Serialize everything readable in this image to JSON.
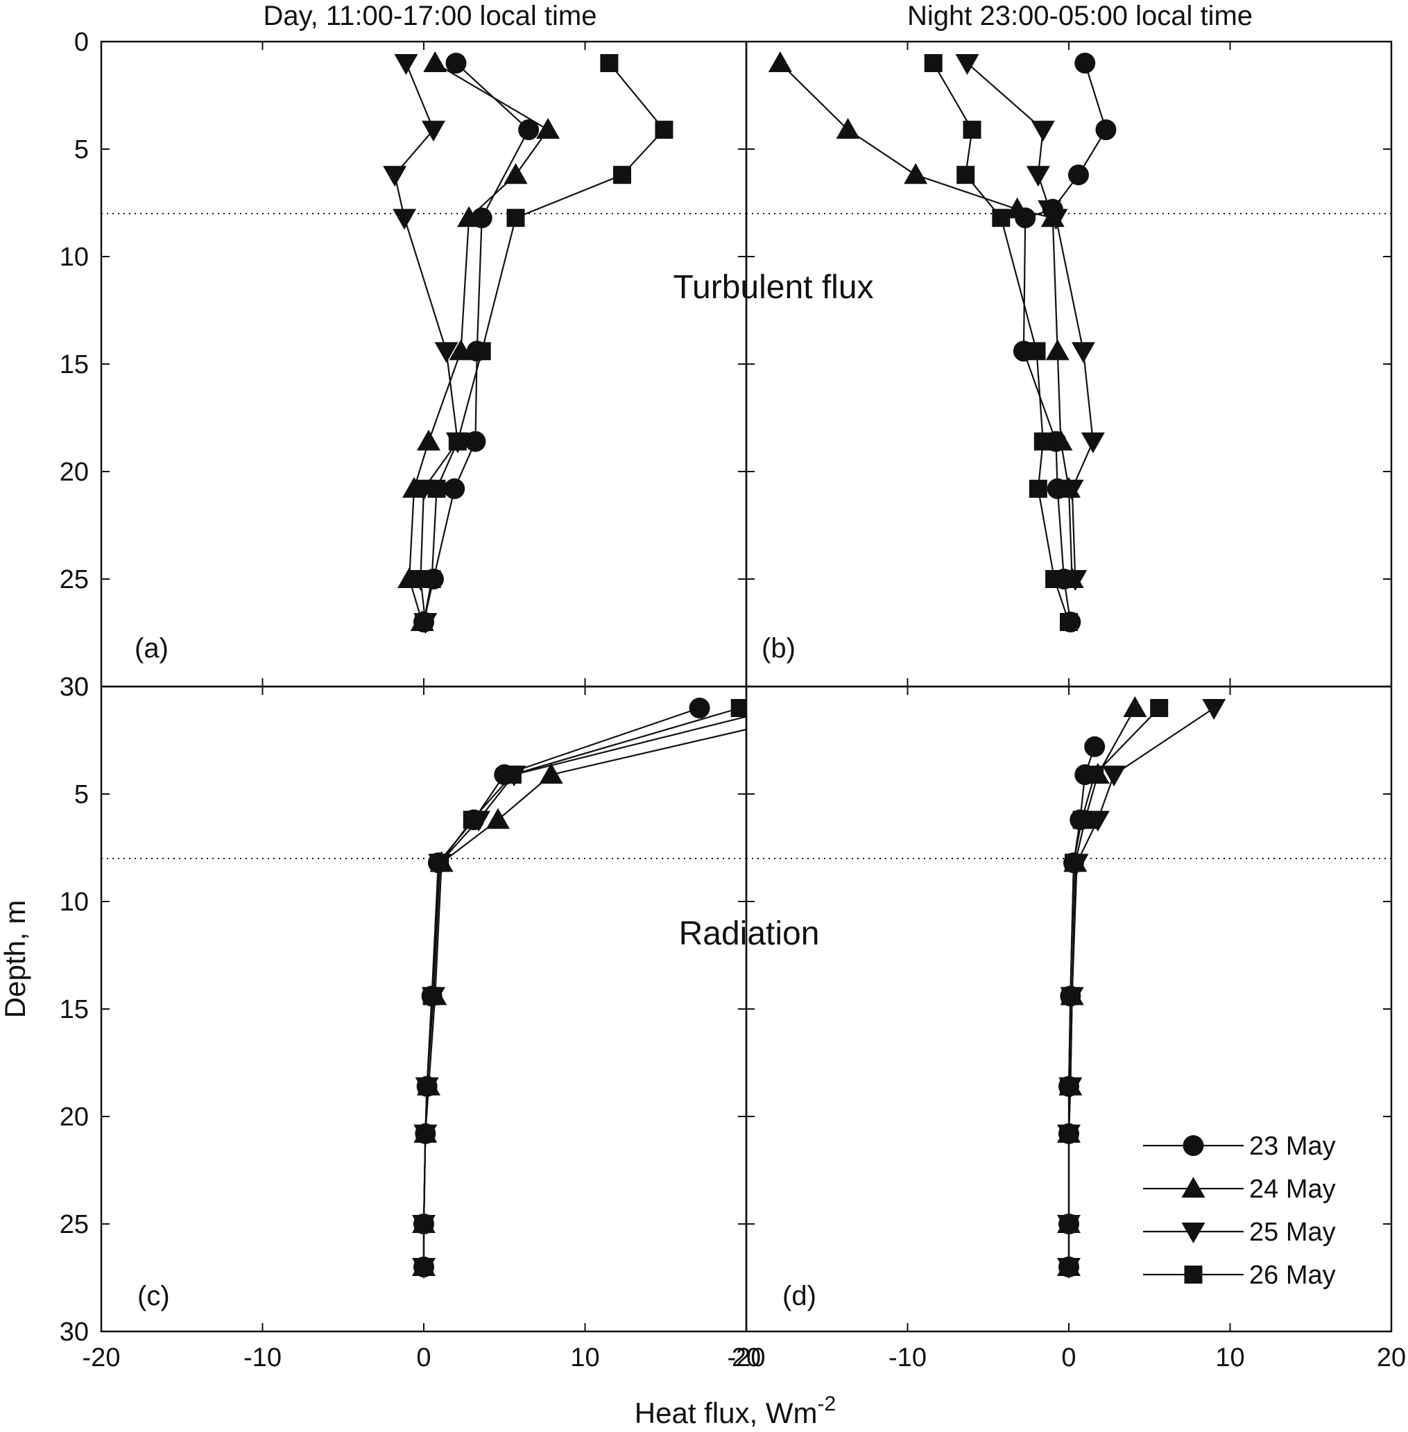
{
  "figure": {
    "column_titles": [
      "Day, 11:00-17:00 local time",
      "Night 23:00-05:00 local time"
    ],
    "xlabel": "Heat flux, Wm",
    "xlabel_sup": "-2",
    "ylabel": "Depth, m",
    "colors": {
      "ink": "#111111",
      "background": "#ffffff"
    },
    "legend_position": "bottom-right of panel (d)"
  },
  "chart_data": [
    {
      "type": "line",
      "panel": "(a)",
      "title": "Turbulent flux",
      "orientation": "depth-profile",
      "xlim": [
        -20,
        20
      ],
      "ylim": [
        30,
        0
      ],
      "y_inverted": true,
      "xticks": [
        -20,
        -10,
        0,
        10,
        20
      ],
      "yticks": [
        0,
        5,
        10,
        15,
        20,
        25,
        30
      ],
      "reference_depth": 8,
      "series": [
        {
          "name": "23 May",
          "marker": "circle",
          "x": [
            2.0,
            6.5,
            3.6,
            3.3,
            3.2,
            1.9,
            0.6,
            0.0
          ],
          "depth": [
            1.0,
            4.1,
            8.2,
            14.4,
            18.6,
            20.8,
            25.0,
            27.0
          ]
        },
        {
          "name": "24 May",
          "marker": "triangle-up",
          "x": [
            0.7,
            7.7,
            5.7,
            2.8,
            2.3,
            0.3,
            -0.6,
            -0.9,
            -0.1
          ],
          "depth": [
            1.0,
            4.1,
            6.2,
            8.2,
            14.4,
            18.6,
            20.8,
            25.0,
            27.0
          ]
        },
        {
          "name": "25 May",
          "marker": "triangle-down",
          "x": [
            -1.1,
            0.6,
            -1.8,
            -1.2,
            1.4,
            2.1,
            0.0,
            -0.2,
            0.1
          ],
          "depth": [
            1.0,
            4.1,
            6.2,
            8.2,
            14.4,
            18.6,
            20.8,
            25.0,
            27.0
          ]
        },
        {
          "name": "26 May",
          "marker": "square",
          "x": [
            11.5,
            14.9,
            12.3,
            5.7,
            3.6,
            2.1,
            0.8,
            0.5,
            0.0
          ],
          "depth": [
            1.0,
            4.1,
            6.2,
            8.2,
            14.4,
            18.6,
            20.8,
            25.0,
            27.0
          ]
        }
      ]
    },
    {
      "type": "line",
      "panel": "(b)",
      "title": "",
      "orientation": "depth-profile",
      "xlim": [
        -20,
        20
      ],
      "ylim": [
        30,
        0
      ],
      "y_inverted": true,
      "xticks": [
        -20,
        -10,
        0,
        10,
        20
      ],
      "yticks": [
        0,
        5,
        10,
        15,
        20,
        25,
        30
      ],
      "reference_depth": 8,
      "series": [
        {
          "name": "23 May",
          "marker": "circle",
          "x": [
            1.0,
            2.3,
            0.6,
            -1.0,
            -2.7,
            -2.8,
            -0.8,
            -0.7,
            -0.3,
            0.1
          ],
          "depth": [
            1.0,
            4.1,
            6.2,
            7.8,
            8.2,
            14.4,
            18.6,
            20.8,
            25.0,
            27.0
          ]
        },
        {
          "name": "24 May",
          "marker": "triangle-up",
          "x": [
            -17.9,
            -13.7,
            -9.5,
            -3.2,
            -1.0,
            -0.7,
            -0.5,
            0.0,
            0.2
          ],
          "depth": [
            1.0,
            4.1,
            6.2,
            7.8,
            8.2,
            14.4,
            18.6,
            20.8,
            25.0
          ]
        },
        {
          "name": "25 May",
          "marker": "triangle-down",
          "x": [
            -6.3,
            -1.6,
            -1.9,
            -1.2,
            -0.8,
            0.9,
            1.5,
            0.2,
            0.4
          ],
          "depth": [
            1.0,
            4.1,
            6.2,
            7.8,
            8.2,
            14.4,
            18.6,
            20.8,
            25.0
          ]
        },
        {
          "name": "26 May",
          "marker": "square",
          "x": [
            -8.4,
            -6.0,
            -6.4,
            -4.2,
            -2.0,
            -1.6,
            -1.9,
            -0.9,
            0.0
          ],
          "depth": [
            1.0,
            4.1,
            6.2,
            8.2,
            14.4,
            18.6,
            20.8,
            25.0,
            27.0
          ]
        }
      ]
    },
    {
      "type": "line",
      "panel": "(c)",
      "title": "Radiation",
      "orientation": "depth-profile",
      "xlim": [
        -20,
        20
      ],
      "ylim": [
        30,
        0
      ],
      "y_inverted": true,
      "xticks": [
        -20,
        -10,
        0,
        10,
        20
      ],
      "yticks": [
        0,
        5,
        10,
        15,
        20,
        25,
        30
      ],
      "reference_depth": 8,
      "series": [
        {
          "name": "23 May",
          "marker": "circle",
          "x": [
            17.1,
            5.0,
            3.1,
            0.9,
            0.5,
            0.2,
            0.1,
            0.0,
            0.0
          ],
          "depth": [
            1.0,
            4.1,
            6.2,
            8.2,
            14.4,
            18.6,
            20.8,
            25.0,
            27.0
          ]
        },
        {
          "name": "24 May",
          "marker": "triangle-up",
          "x": [
            20.0,
            7.9,
            4.6,
            1.1,
            0.7,
            0.3,
            0.1,
            0.0,
            0.0
          ],
          "depth": [
            2.0,
            4.1,
            6.2,
            8.2,
            14.4,
            18.6,
            20.8,
            25.0,
            27.0
          ]
        },
        {
          "name": "25 May",
          "marker": "triangle-down",
          "x": [
            20.0,
            5.6,
            3.4,
            1.0,
            0.6,
            0.2,
            0.1,
            0.0,
            0.0
          ],
          "depth": [
            1.4,
            4.1,
            6.2,
            8.2,
            14.4,
            18.6,
            20.8,
            25.0,
            27.0
          ]
        },
        {
          "name": "26 May",
          "marker": "square",
          "x": [
            19.6,
            5.5,
            3.0,
            1.0,
            0.5,
            0.2,
            0.1,
            0.0,
            0.0
          ],
          "depth": [
            1.0,
            4.1,
            6.2,
            8.2,
            14.4,
            18.6,
            20.8,
            25.0,
            27.0
          ]
        }
      ]
    },
    {
      "type": "line",
      "panel": "(d)",
      "title": "",
      "orientation": "depth-profile",
      "xlim": [
        -20,
        20
      ],
      "ylim": [
        30,
        0
      ],
      "y_inverted": true,
      "xticks": [
        -20,
        -10,
        0,
        10,
        20
      ],
      "yticks": [
        0,
        5,
        10,
        15,
        20,
        25,
        30
      ],
      "reference_depth": 8,
      "series": [
        {
          "name": "23 May",
          "marker": "circle",
          "x": [
            1.6,
            1.0,
            0.7,
            0.3,
            0.1,
            0.0,
            0.0,
            0.0,
            0.0
          ],
          "depth": [
            2.8,
            4.1,
            6.2,
            8.2,
            14.4,
            18.6,
            20.8,
            25.0,
            27.0
          ]
        },
        {
          "name": "24 May",
          "marker": "triangle-up",
          "x": [
            4.1,
            1.8,
            1.0,
            0.4,
            0.2,
            0.1,
            0.0,
            0.0,
            0.0
          ],
          "depth": [
            1.0,
            4.1,
            6.2,
            8.2,
            14.4,
            18.6,
            20.8,
            25.0,
            27.0
          ]
        },
        {
          "name": "25 May",
          "marker": "triangle-down",
          "x": [
            9.0,
            2.8,
            1.8,
            0.5,
            0.2,
            0.1,
            0.0,
            0.0,
            0.0
          ],
          "depth": [
            1.0,
            4.1,
            6.2,
            8.2,
            14.4,
            18.6,
            20.8,
            25.0,
            27.0
          ]
        },
        {
          "name": "26 May",
          "marker": "square",
          "x": [
            5.6,
            1.6,
            0.8,
            0.3,
            0.1,
            0.0,
            0.0,
            0.0,
            0.0
          ],
          "depth": [
            1.0,
            4.1,
            6.2,
            8.2,
            14.4,
            18.6,
            20.8,
            25.0,
            27.0
          ]
        }
      ]
    }
  ]
}
